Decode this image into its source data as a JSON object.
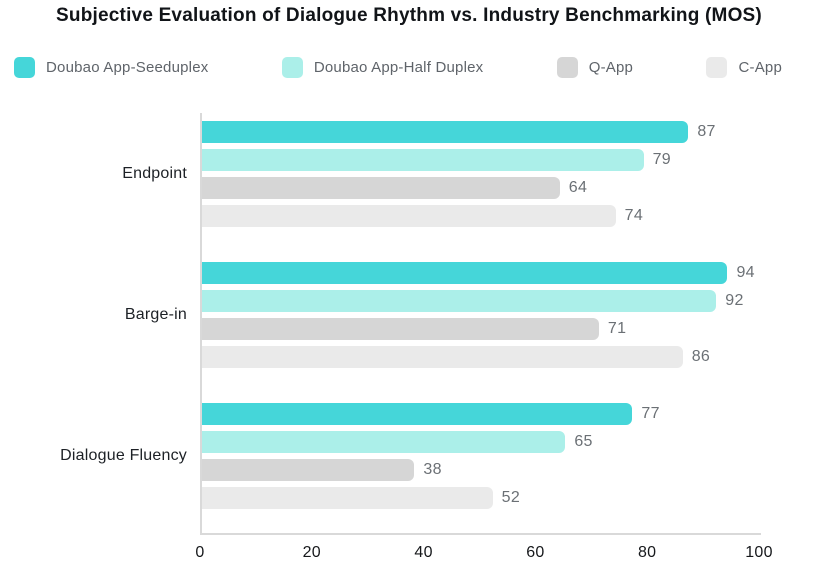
{
  "title": "Subjective Evaluation of Dialogue Rhythm vs. Industry Benchmarking (MOS)",
  "colors": {
    "title": "#111418",
    "legend_label": "#5f646a",
    "category_label": "#1d2126",
    "value_label": "#6b7075",
    "tick_label": "#16181b",
    "axis": "#d9d9d9"
  },
  "chart_data": {
    "type": "bar",
    "orientation": "horizontal",
    "title": "Subjective Evaluation of Dialogue Rhythm vs. Industry Benchmarking (MOS)",
    "categories": [
      "Endpoint",
      "Barge-in",
      "Dialogue Fluency"
    ],
    "series": [
      {
        "name": "Doubao App-Seeduplex",
        "color": "#45d6d9",
        "values": [
          87,
          94,
          77
        ]
      },
      {
        "name": "Doubao App-Half Duplex",
        "color": "#abefe9",
        "values": [
          79,
          92,
          65
        ]
      },
      {
        "name": "Q-App",
        "color": "#d6d6d6",
        "values": [
          64,
          71,
          38
        ]
      },
      {
        "name": "C-App",
        "color": "#eaeaea",
        "values": [
          74,
          86,
          52
        ]
      }
    ],
    "xlabel": "",
    "ylabel": "",
    "xlim": [
      0,
      100
    ],
    "xticks": [
      0,
      20,
      40,
      60,
      80,
      100
    ],
    "value_labels_shown": true,
    "grid": false,
    "legend_position": "top"
  }
}
